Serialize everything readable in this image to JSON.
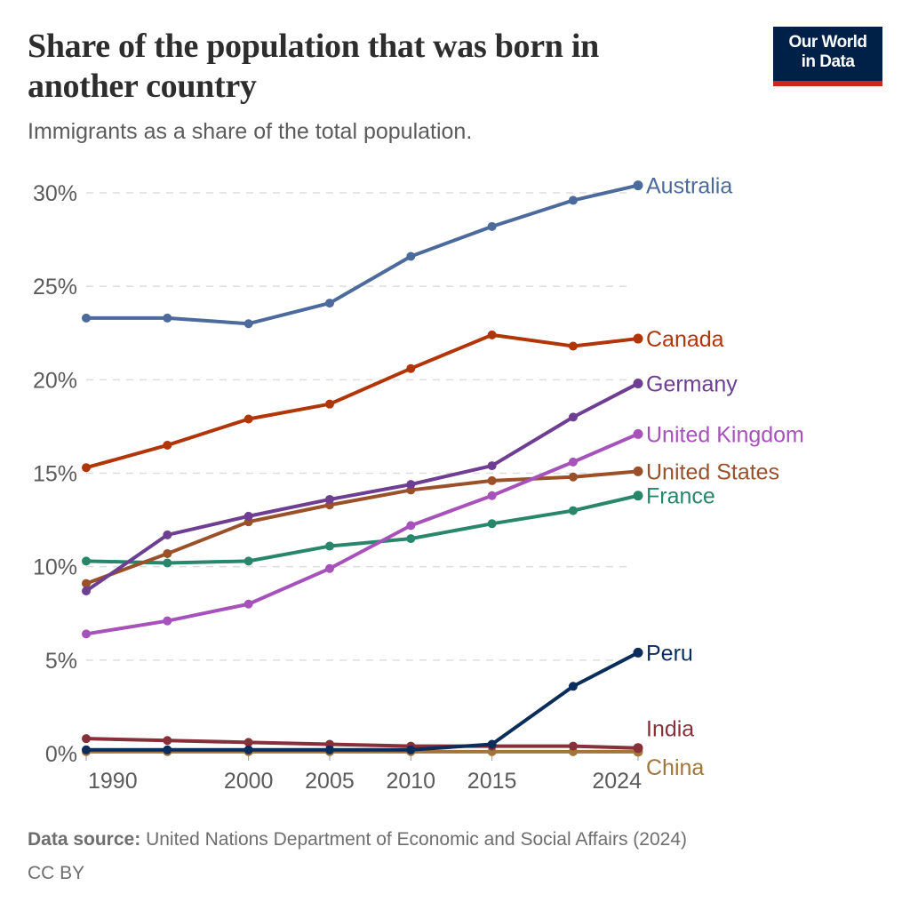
{
  "header": {
    "title": "Share of the population that was born in another country",
    "subtitle": "Immigrants as a share of the total population.",
    "logo_line1": "Our World",
    "logo_line2": "in Data"
  },
  "footer": {
    "source_label": "Data source:",
    "source_text": "United Nations Department of Economic and Social Affairs (2024)",
    "license": "CC BY"
  },
  "colors": {
    "logo_bg": "#002147",
    "logo_accent": "#ce261e",
    "grid": "#dddddd",
    "axis_text": "#5b5b5b"
  },
  "chart_data": {
    "type": "line",
    "title": "Share of the population that was born in another country",
    "subtitle": "Immigrants as a share of the total population.",
    "xlabel": "",
    "ylabel": "",
    "x": [
      1990,
      1995,
      2000,
      2005,
      2010,
      2015,
      2020,
      2024
    ],
    "x_ticks": [
      1990,
      2000,
      2005,
      2010,
      2015,
      2024
    ],
    "x_tick_labels": [
      "1990",
      "2000",
      "2005",
      "2010",
      "2015",
      "2024"
    ],
    "y_ticks": [
      0,
      5,
      10,
      15,
      20,
      25,
      30
    ],
    "y_tick_labels": [
      "0%",
      "5%",
      "10%",
      "15%",
      "20%",
      "25%",
      "30%"
    ],
    "ylim": [
      0,
      30
    ],
    "xlim": [
      1990,
      2024
    ],
    "grid": "horizontal dashed",
    "legend": "inline labels at line ends (right)",
    "series": [
      {
        "name": "Australia",
        "color": "#4c6a9c",
        "values": [
          23.3,
          23.3,
          23.0,
          24.1,
          26.6,
          28.2,
          29.6,
          30.4
        ]
      },
      {
        "name": "Canada",
        "color": "#b13507",
        "values": [
          15.3,
          16.5,
          17.9,
          18.7,
          20.6,
          22.4,
          21.8,
          22.2
        ]
      },
      {
        "name": "Germany",
        "color": "#6d3e91",
        "values": [
          8.7,
          11.7,
          12.7,
          13.6,
          14.4,
          15.4,
          18.0,
          19.8
        ]
      },
      {
        "name": "United Kingdom",
        "color": "#a652ba",
        "values": [
          6.4,
          7.1,
          8.0,
          9.9,
          12.2,
          13.8,
          15.6,
          17.1
        ]
      },
      {
        "name": "United States",
        "color": "#9a5129",
        "values": [
          9.1,
          10.7,
          12.4,
          13.3,
          14.1,
          14.6,
          14.8,
          15.1
        ]
      },
      {
        "name": "France",
        "color": "#28866a",
        "values": [
          10.3,
          10.2,
          10.3,
          11.1,
          11.5,
          12.3,
          13.0,
          13.8
        ]
      },
      {
        "name": "Peru",
        "color": "#0b2d5b",
        "values": [
          0.2,
          0.2,
          0.2,
          0.2,
          0.2,
          0.5,
          3.6,
          5.4
        ]
      },
      {
        "name": "India",
        "color": "#883039",
        "values": [
          0.8,
          0.7,
          0.6,
          0.5,
          0.4,
          0.4,
          0.4,
          0.3
        ]
      },
      {
        "name": "China",
        "color": "#a2763a",
        "values": [
          0.1,
          0.1,
          0.1,
          0.1,
          0.1,
          0.1,
          0.1,
          0.1
        ]
      }
    ]
  }
}
